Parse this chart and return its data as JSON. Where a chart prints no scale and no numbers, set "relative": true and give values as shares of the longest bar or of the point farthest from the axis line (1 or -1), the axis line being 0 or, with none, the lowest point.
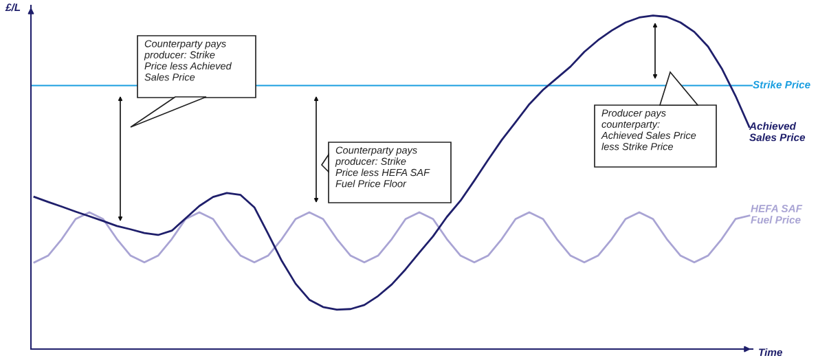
{
  "chart_data": {
    "type": "line",
    "relative": true,
    "xlabel": "Time",
    "ylabel": "£/L",
    "legend": false,
    "categories": [
      null,
      null,
      null,
      null,
      null,
      null,
      null,
      null,
      null,
      null,
      null,
      null,
      null,
      null,
      null,
      null,
      null,
      null,
      null,
      null,
      null,
      null,
      null,
      null,
      null,
      null,
      null,
      null,
      null,
      null,
      null,
      null,
      null,
      null,
      null,
      null,
      null,
      null,
      null,
      null,
      null,
      null,
      null,
      null,
      null,
      null,
      null,
      null,
      null,
      null,
      null,
      null,
      null
    ],
    "series": [
      {
        "name": "HEFA SAF Fuel Price",
        "color": "#a9a4d4",
        "values": [
          0.26,
          0.28,
          0.33,
          0.39,
          0.41,
          0.39,
          0.33,
          0.28,
          0.26,
          0.28,
          0.33,
          0.39,
          0.41,
          0.39,
          0.33,
          0.28,
          0.26,
          0.28,
          0.33,
          0.39,
          0.41,
          0.39,
          0.33,
          0.28,
          0.26,
          0.28,
          0.33,
          0.39,
          0.41,
          0.39,
          0.33,
          0.28,
          0.26,
          0.28,
          0.33,
          0.39,
          0.41,
          0.39,
          0.33,
          0.28,
          0.26,
          0.28,
          0.33,
          0.39,
          0.41,
          0.39,
          0.33,
          0.28,
          0.26,
          0.28,
          0.33,
          0.39,
          0.4
        ]
      },
      {
        "name": "Achieved Sales Price",
        "color": "#1f1f6b",
        "values": [
          0.456,
          0.441,
          0.427,
          0.412,
          0.398,
          0.384,
          0.369,
          0.359,
          0.348,
          0.342,
          0.355,
          0.392,
          0.429,
          0.456,
          0.468,
          0.462,
          0.425,
          0.346,
          0.264,
          0.196,
          0.148,
          0.126,
          0.118,
          0.12,
          0.132,
          0.159,
          0.194,
          0.239,
          0.289,
          0.338,
          0.396,
          0.445,
          0.505,
          0.567,
          0.627,
          0.68,
          0.734,
          0.777,
          0.812,
          0.847,
          0.891,
          0.926,
          0.955,
          0.979,
          0.994,
          1.0,
          0.996,
          0.979,
          0.951,
          0.907,
          0.841,
          0.759,
          0.666
        ]
      }
    ],
    "ref_lines": [
      {
        "axis": "y",
        "value": 0.79,
        "label": "Strike Price",
        "color": "#1a9ee0"
      }
    ],
    "annotations": [
      "Counterparty pays\nproducer: Strike\nPrice less Achieved\nSales Price",
      "Counterparty pays\nproducer: Strike\nPrice less HEFA SAF\nFuel Price Floor",
      "Producer pays\ncounterparty:\nAchieved Sales Price\nless Strike Price"
    ]
  }
}
